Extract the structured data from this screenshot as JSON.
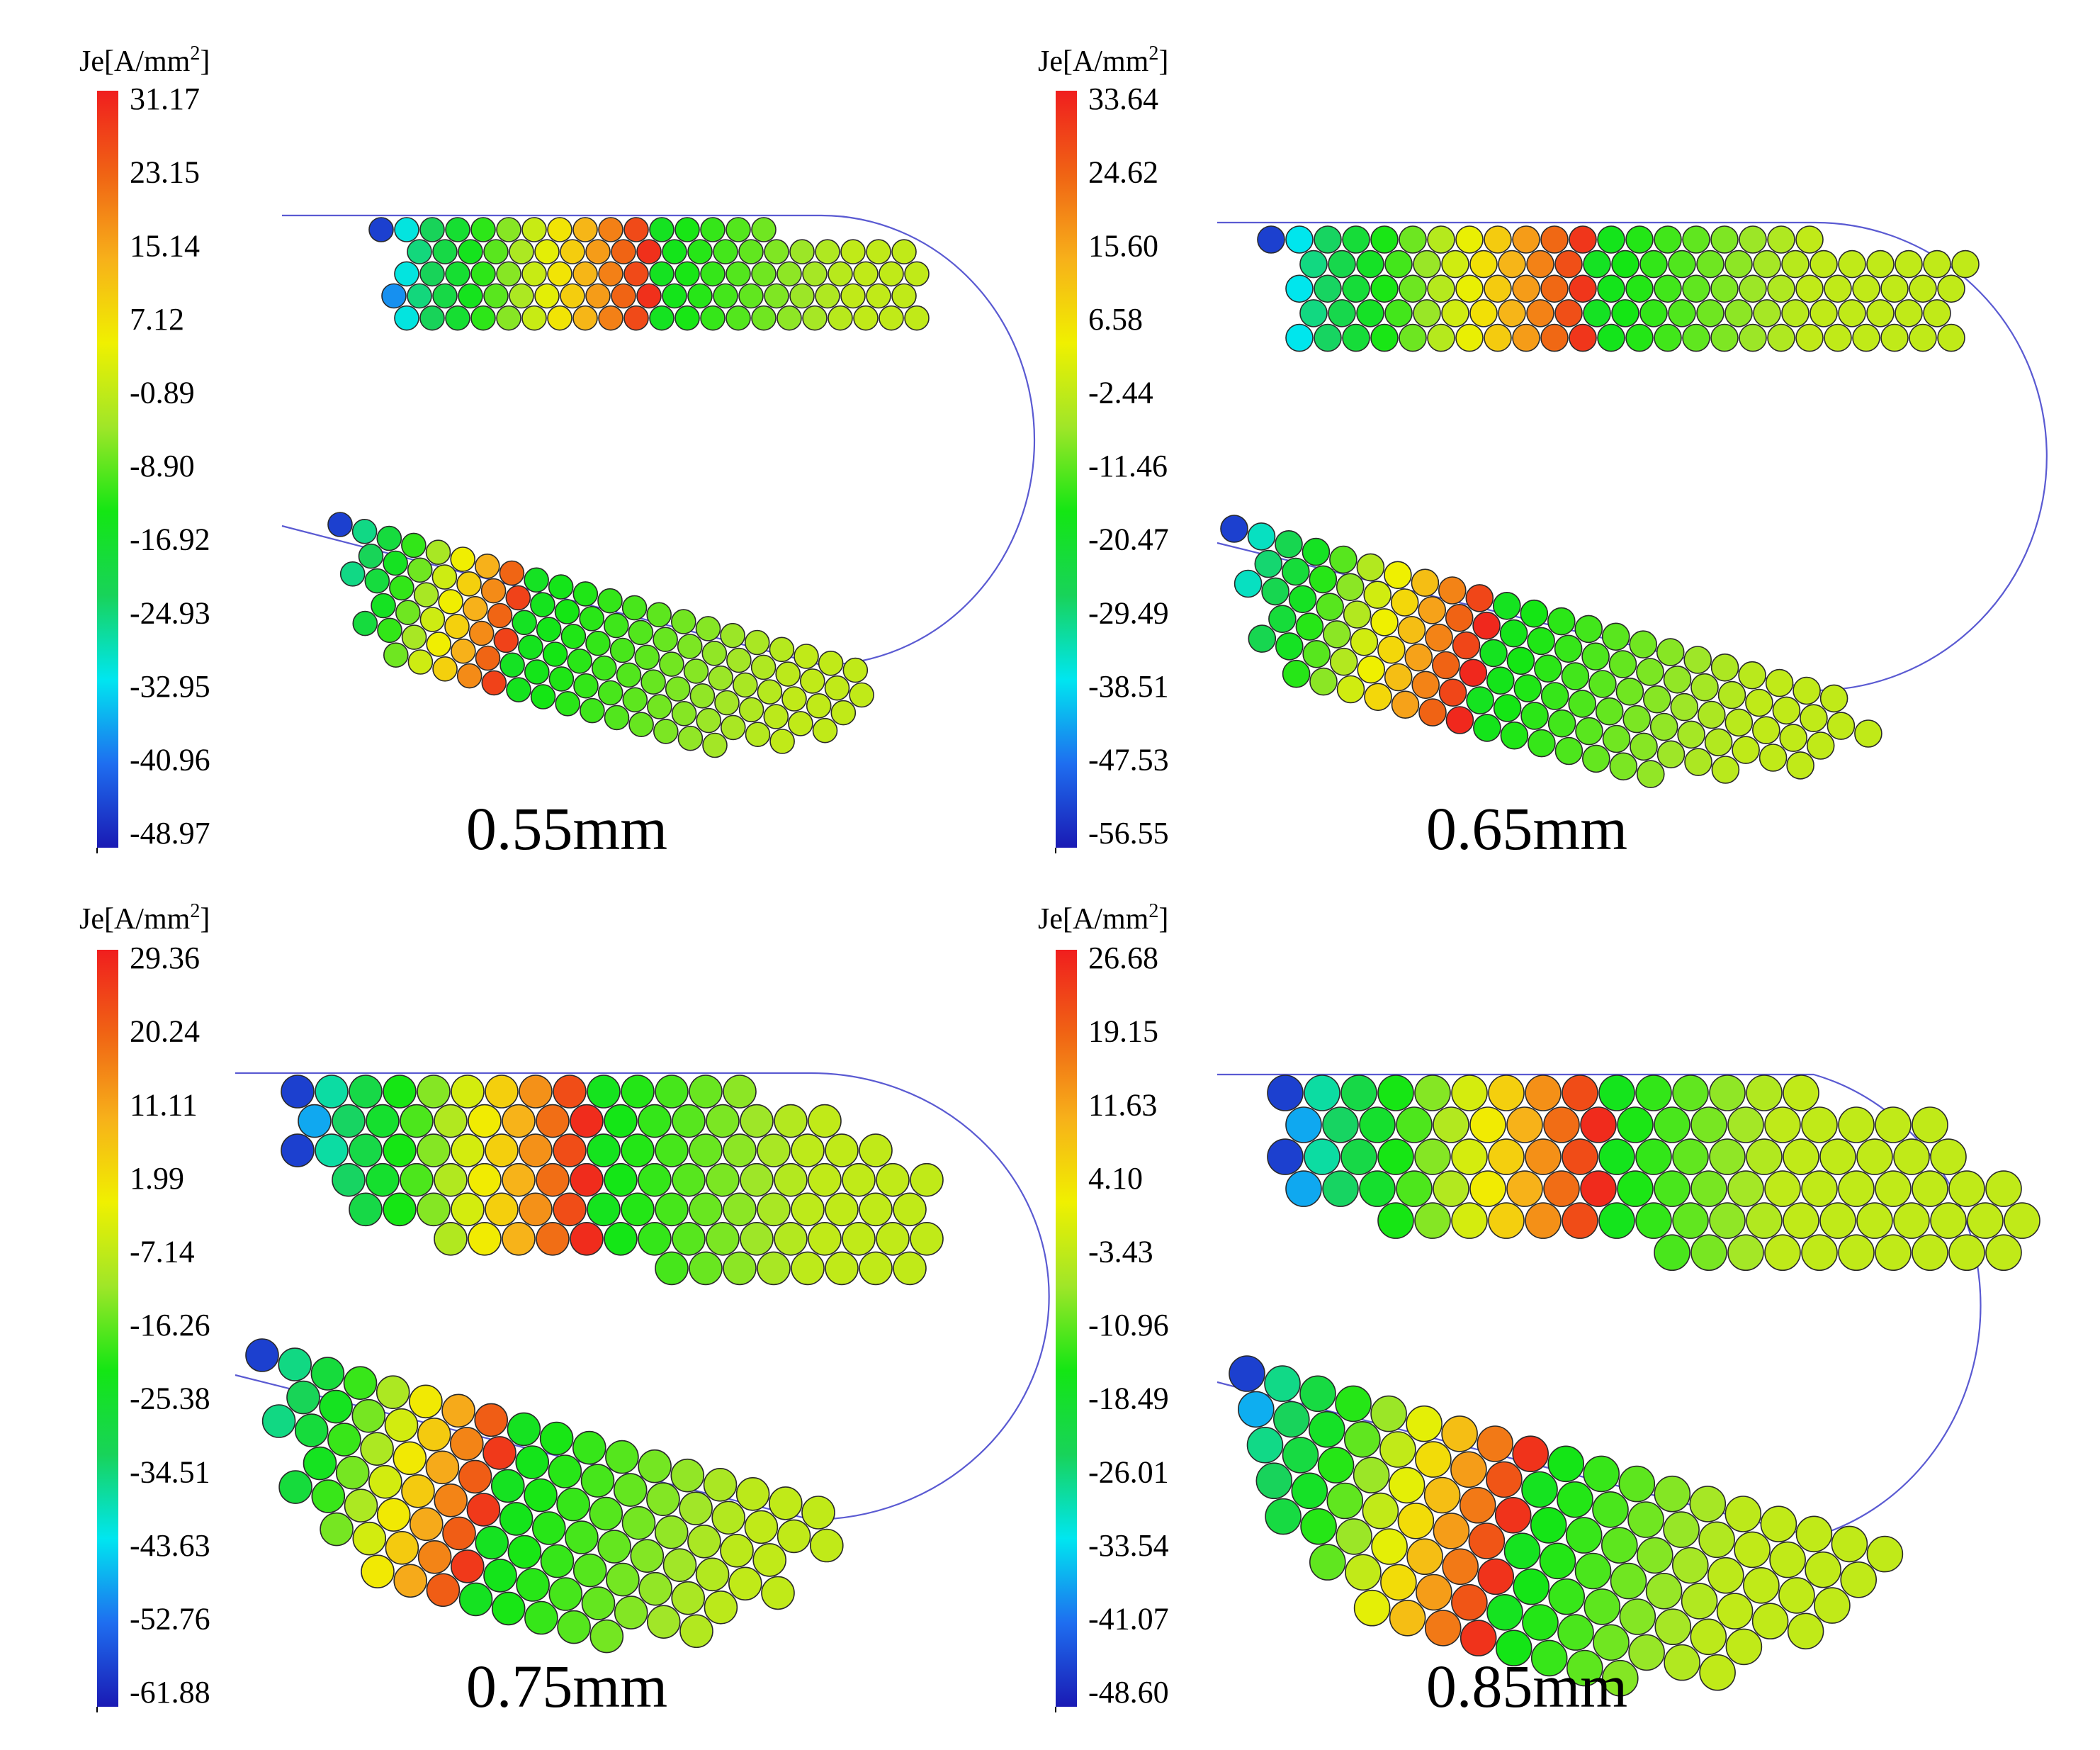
{
  "colormap": {
    "stops": [
      "#1a1ab4",
      "#1e6ef0",
      "#00e6f0",
      "#18d35a",
      "#14e614",
      "#a0e628",
      "#f0f000",
      "#f7b01a",
      "#f06414",
      "#f01e1e"
    ]
  },
  "panels": [
    {
      "id": "0.55mm",
      "caption": "0.55mm",
      "unit_label": {
        "prefix": "Je[A/mm",
        "sup": "2",
        "suffix": "]"
      },
      "ticks": [
        "31.17",
        "23.15",
        "15.14",
        "7.12",
        "-0.89",
        "-8.90",
        "-16.92",
        "-24.93",
        "-32.95",
        "-40.96",
        "-48.97"
      ]
    },
    {
      "id": "0.65mm",
      "caption": "0.65mm",
      "unit_label": {
        "prefix": "Je[A/mm",
        "sup": "2",
        "suffix": "]"
      },
      "ticks": [
        "33.64",
        "24.62",
        "15.60",
        "6.58",
        "-2.44",
        "-11.46",
        "-20.47",
        "-29.49",
        "-38.51",
        "-47.53",
        "-56.55"
      ]
    },
    {
      "id": "0.75mm",
      "caption": "0.75mm",
      "unit_label": {
        "prefix": "Je[A/mm",
        "sup": "2",
        "suffix": "]"
      },
      "ticks": [
        "29.36",
        "20.24",
        "11.11",
        "1.99",
        "-7.14",
        "-16.26",
        "-25.38",
        "-34.51",
        "-43.63",
        "-52.76",
        "-61.88"
      ]
    },
    {
      "id": "0.85mm",
      "caption": "0.85mm",
      "unit_label": {
        "prefix": "Je[A/mm",
        "sup": "2",
        "suffix": "]"
      },
      "ticks": [
        "26.68",
        "19.15",
        "11.63",
        "4.10",
        "-3.43",
        "-10.96",
        "-18.49",
        "-26.01",
        "-33.54",
        "-41.07",
        "-48.60"
      ]
    }
  ]
}
